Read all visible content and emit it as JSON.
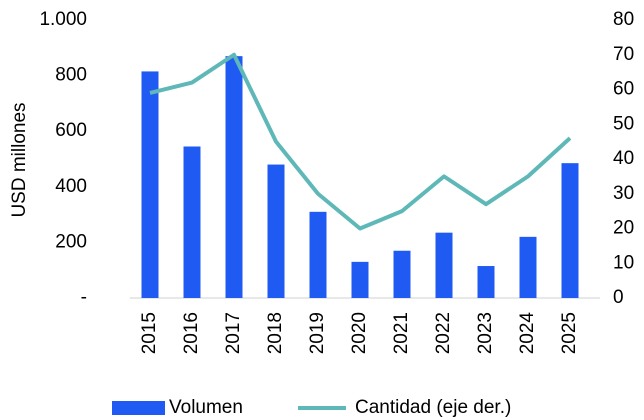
{
  "chart_data": {
    "type": "bar",
    "categories": [
      "2015",
      "2016",
      "2017",
      "2018",
      "2019",
      "2020",
      "2021",
      "2022",
      "2023",
      "2024",
      "2025"
    ],
    "series": [
      {
        "name": "Volumen",
        "type": "bar",
        "color": "#1f5bf2",
        "values": [
          815,
          545,
          870,
          480,
          310,
          130,
          170,
          235,
          115,
          220,
          485
        ]
      },
      {
        "name": "Cantidad (eje der.)",
        "type": "line",
        "axis": "y2",
        "color": "#5fb8b8",
        "values": [
          59,
          62,
          70,
          45,
          30,
          20,
          25,
          35,
          27,
          35,
          46
        ]
      }
    ],
    "ylabel": "USD millones",
    "ylim": [
      0,
      1000
    ],
    "yticks": [
      {
        "value": 0,
        "label": "-"
      },
      200,
      400,
      600,
      800,
      {
        "value": 1000,
        "label": "1.000"
      }
    ],
    "y2lim": [
      0,
      80
    ],
    "y2ticks": [
      0,
      10,
      20,
      30,
      40,
      50,
      60,
      70,
      80
    ],
    "grid": false,
    "legend": "bottom"
  }
}
